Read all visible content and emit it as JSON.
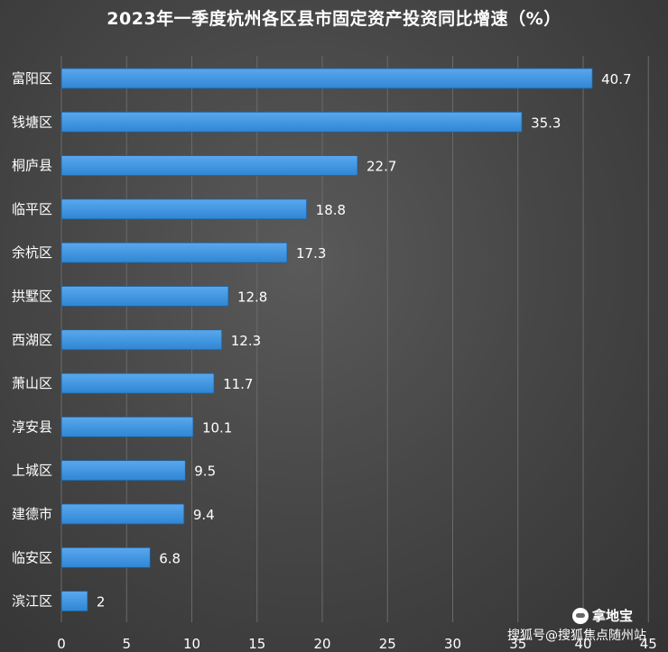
{
  "chart_data": {
    "type": "bar",
    "orientation": "horizontal",
    "title": "2023年一季度杭州各区县市固定资产投资同比增速（%）",
    "categories": [
      "富阳区",
      "钱塘区",
      "桐庐县",
      "临平区",
      "余杭区",
      "拱墅区",
      "西湖区",
      "萧山区",
      "淳安县",
      "上城区",
      "建德市",
      "临安区",
      "滨江区"
    ],
    "values": [
      40.7,
      35.3,
      22.7,
      18.8,
      17.3,
      12.8,
      12.3,
      11.7,
      10.1,
      9.5,
      9.4,
      6.8,
      2
    ],
    "value_labels": [
      "40.7",
      "35.3",
      "22.7",
      "18.8",
      "17.3",
      "12.8",
      "12.3",
      "11.7",
      "10.1",
      "9.5",
      "9.4",
      "6.8",
      "2"
    ],
    "xlim": [
      0,
      45
    ],
    "xticks": [
      0,
      5,
      10,
      15,
      20,
      25,
      30,
      35,
      40,
      45
    ],
    "grid": true,
    "bar_color": "#2f86d4",
    "bar_color_light": "#5aa8ee"
  },
  "watermark": {
    "brand_name": "拿地宝",
    "footer_text": "搜狐号@搜狐焦点随州站"
  },
  "colors": {
    "background": "#474747",
    "text": "#ffffff",
    "grid": "#6a6a6a"
  }
}
